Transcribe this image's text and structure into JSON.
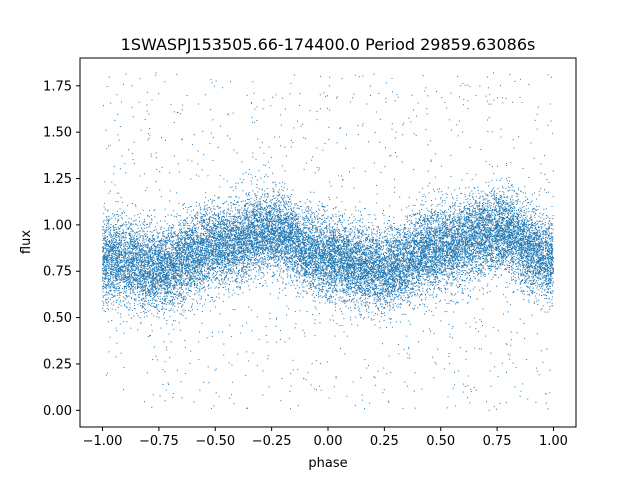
{
  "chart_data": {
    "type": "scatter",
    "title": "1SWASPJ153505.66-174400.0 Period 29859.63086s",
    "xlabel": "phase",
    "ylabel": "flux",
    "xlim": [
      -1.1,
      1.1
    ],
    "ylim": [
      -0.09,
      1.9
    ],
    "grid": false,
    "point_color": "#1f77b4",
    "x_ticks": [
      -1.0,
      -0.75,
      -0.5,
      -0.25,
      0.0,
      0.25,
      0.5,
      0.75,
      1.0
    ],
    "x_tick_labels": [
      "−1.00",
      "−0.75",
      "−0.50",
      "−0.25",
      "0.00",
      "0.25",
      "0.50",
      "0.75",
      "1.00"
    ],
    "y_ticks": [
      0.0,
      0.25,
      0.5,
      0.75,
      1.0,
      1.25,
      1.5,
      1.75
    ],
    "y_tick_labels": [
      "0.00",
      "0.25",
      "0.50",
      "0.75",
      "1.00",
      "1.25",
      "1.50",
      "1.75"
    ],
    "phase_range": [
      -1.0,
      1.0
    ],
    "flux_range": [
      0.0,
      1.82
    ],
    "phased_trend": {
      "phase": [
        -1.0,
        -0.75,
        -0.5,
        -0.25,
        0.0,
        0.25,
        0.5,
        0.75,
        1.0
      ],
      "flux": [
        0.82,
        0.76,
        0.88,
        0.96,
        0.82,
        0.76,
        0.88,
        0.96,
        0.82
      ]
    },
    "scatter_sigma": 0.11
  }
}
